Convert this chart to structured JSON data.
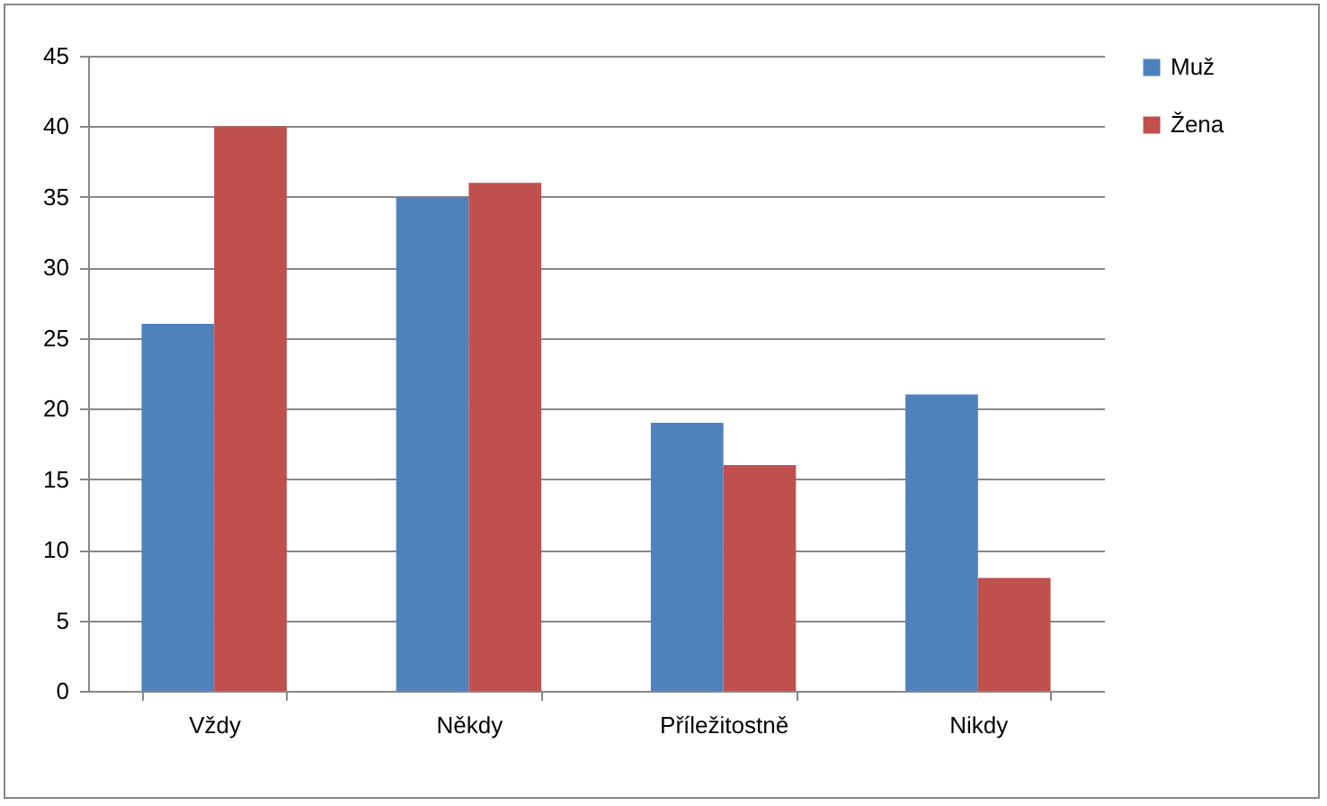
{
  "chart_data": {
    "type": "bar",
    "categories": [
      "Vždy",
      "Někdy",
      "Příležitostně",
      "Nikdy"
    ],
    "series": [
      {
        "name": "Muž",
        "color": "#4f81bd",
        "values": [
          26,
          35,
          19,
          21
        ]
      },
      {
        "name": "Žena",
        "color": "#c0504d",
        "values": [
          40,
          36,
          16,
          8
        ]
      }
    ],
    "ylim": [
      0,
      45
    ],
    "yticks": [
      0,
      5,
      10,
      15,
      20,
      25,
      30,
      35,
      40,
      45
    ],
    "grid": "y",
    "legend": "right"
  }
}
